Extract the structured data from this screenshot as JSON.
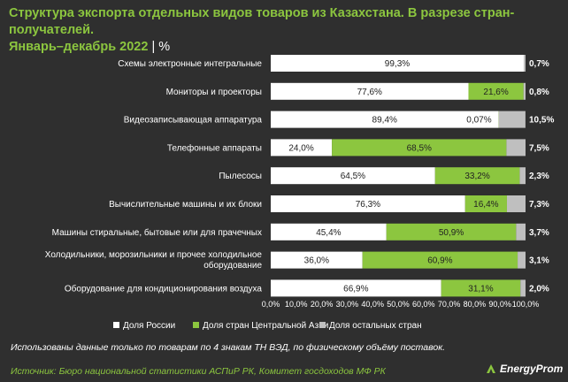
{
  "header": {
    "title_line1": "Структура экспорта отдельных видов товаров из Казахстана. В разрезе стран-получателей.",
    "title_line2": "Январь–декабрь 2022",
    "unit": "%"
  },
  "footer": {
    "note": "Использованы данные только по товарам по 4 знакам ТН ВЭД, по физическому объёму поставок.",
    "source": "Источник: Бюро национальной статистики АСПиР РК, Комитет госдоходов МФ РК",
    "logo_text": "EnergyProm"
  },
  "colors": {
    "background": "#2f2f2f",
    "russia": "#ffffff",
    "central_asia": "#8cc63f",
    "other": "#bfbfbf",
    "accent": "#8cc63f"
  },
  "chart_data": {
    "type": "bar",
    "orientation": "horizontal",
    "stacked": "100%",
    "categories": [
      "Схемы электронные интегральные",
      "Мониторы и проекторы",
      "Видеозаписывающая аппаратура",
      "Телефонные аппараты",
      "Пылесосы",
      "Вычислительные машины и их блоки",
      "Машины стиральные, бытовые или для прачечных",
      "Холодильники, морозильники и прочее холодильное оборудование",
      "Оборудование для кондиционирования воздуха"
    ],
    "series": [
      {
        "name": "Доля России",
        "color": "#ffffff",
        "values": [
          99.3,
          77.6,
          89.4,
          24.0,
          64.5,
          76.3,
          45.4,
          36.0,
          66.9
        ],
        "labels": [
          "99,3%",
          "77,6%",
          "89,4%",
          "24,0%",
          "64,5%",
          "76,3%",
          "45,4%",
          "36,0%",
          "66,9%"
        ]
      },
      {
        "name": "Доля стран Центральной Азии",
        "color": "#8cc63f",
        "values": [
          0.0,
          21.6,
          0.07,
          68.5,
          33.2,
          16.4,
          50.9,
          60.9,
          31.1
        ],
        "labels": [
          "",
          "21,6%",
          "0,07%",
          "68,5%",
          "33,2%",
          "16,4%",
          "50,9%",
          "60,9%",
          "31,1%"
        ]
      },
      {
        "name": "Доля остальных стран",
        "color": "#bfbfbf",
        "values": [
          0.7,
          0.8,
          10.5,
          7.5,
          2.3,
          7.3,
          3.7,
          3.1,
          2.0
        ],
        "labels": [
          "0,7%",
          "0,8%",
          "10,5%",
          "7,5%",
          "2,3%",
          "7,3%",
          "3,7%",
          "3,1%",
          "2,0%"
        ]
      }
    ],
    "xlim": [
      0,
      100
    ],
    "x_ticks": [
      "0,0%",
      "10,0%",
      "20,0%",
      "30,0%",
      "40,0%",
      "50,0%",
      "60,0%",
      "70,0%",
      "80,0%",
      "90,0%",
      "100,0%"
    ],
    "grid": false,
    "legend_position": "bottom"
  }
}
